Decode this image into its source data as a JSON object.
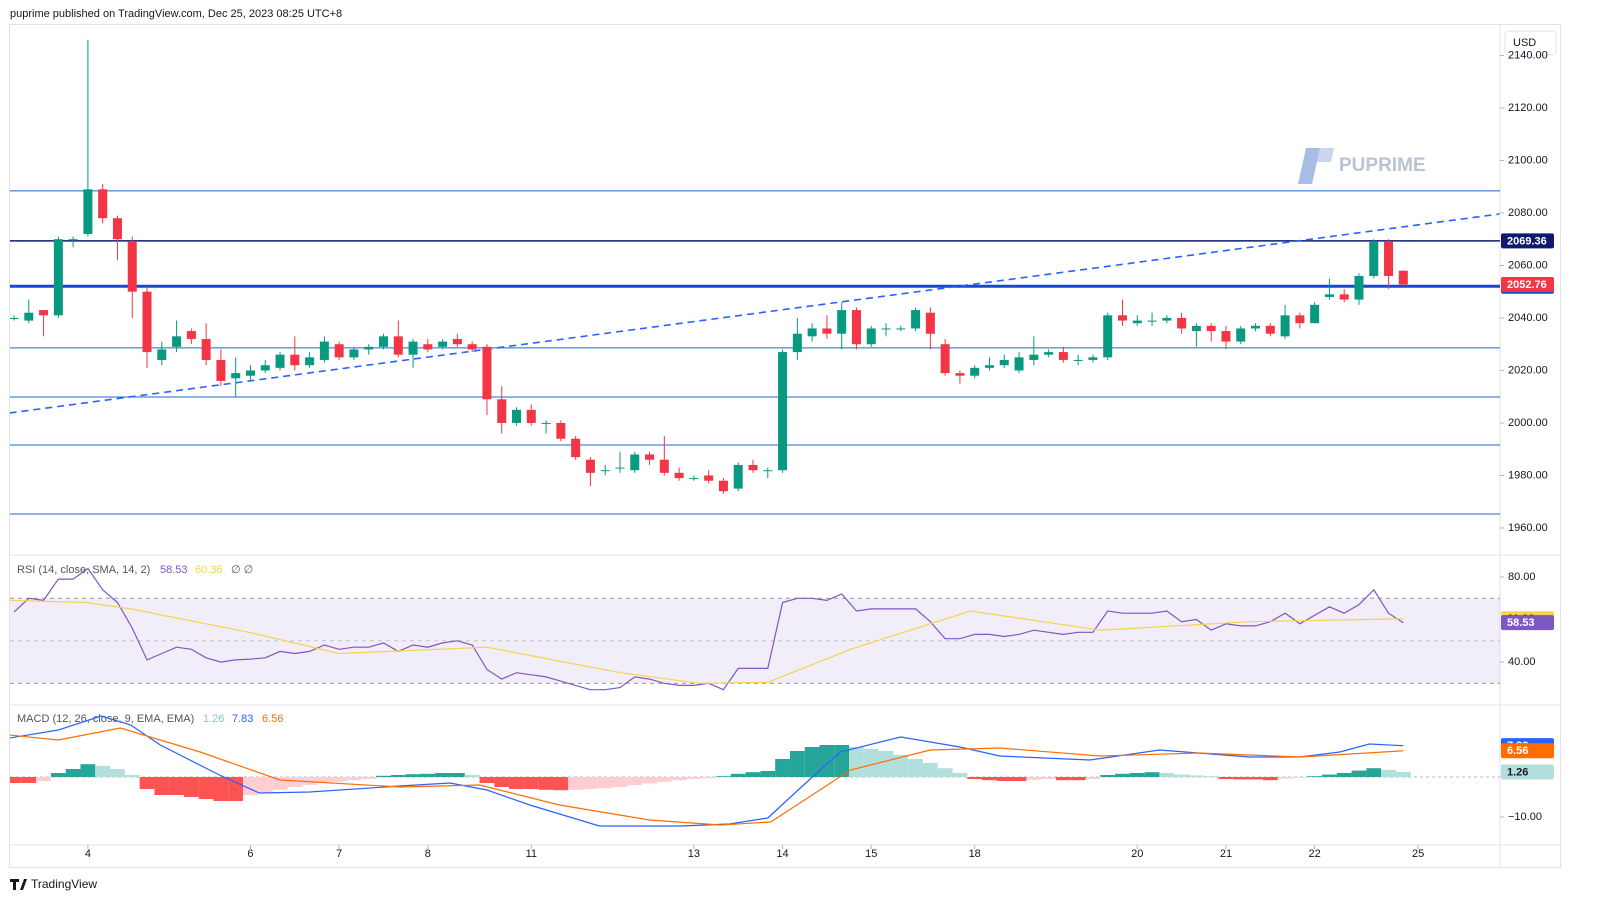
{
  "header": {
    "published": "puprime published on TradingView.com, Dec 25, 2023 08:25 UTC+8",
    "currency": "USD",
    "watermark": "PUPRIME"
  },
  "footer": {
    "brand": "TradingView"
  },
  "chart_data": [
    {
      "type": "candlestick",
      "up_color": "#089981",
      "down_color": "#f23645",
      "open": [
        2040,
        2039,
        2043,
        2041,
        2070,
        2072,
        2089,
        2078,
        2069,
        2050,
        2024,
        2029,
        2035,
        2032,
        2024,
        2017,
        2018,
        2020,
        2021,
        2026,
        2022,
        2024,
        2030,
        2025,
        2028,
        2029,
        2033,
        2026,
        2030,
        2029,
        2032,
        2030,
        2029,
        2009,
        2000,
        2005,
        2000,
        2000,
        1994,
        1986,
        1982,
        1983,
        1982,
        1988,
        1986,
        1981,
        1979,
        1980,
        1978,
        1975,
        1984,
        1982,
        1982,
        2027,
        2033,
        2036,
        2034,
        2043,
        2030,
        2036,
        2036,
        2036,
        2042,
        2030,
        2019,
        2018,
        2021,
        2022,
        2020,
        2024,
        2026,
        2027,
        2024,
        2024,
        2025,
        2041,
        2038,
        2039,
        2039,
        2040,
        2035,
        2037,
        2035,
        2031,
        2036,
        2037,
        2033,
        2041,
        2038,
        2048,
        2049,
        2047,
        2056,
        2069,
        2058
      ],
      "high": [
        2041,
        2047,
        2043,
        2071,
        2071,
        2146,
        2091,
        2079,
        2071,
        2052,
        2031,
        2039,
        2036,
        2038,
        2028,
        2025,
        2022,
        2024,
        2027,
        2033,
        2027,
        2033,
        2031,
        2029,
        2030,
        2034,
        2039,
        2032,
        2032,
        2032,
        2034,
        2031,
        2030,
        2014,
        2006,
        2007,
        2001,
        2001,
        1995,
        1987,
        1984,
        1989,
        1989,
        1989,
        1995,
        1983,
        1980,
        1982,
        1979,
        1985,
        1986,
        1983,
        2028,
        2040,
        2038,
        2041,
        2046,
        2044,
        2037,
        2038,
        2037,
        2044,
        2044,
        2032,
        2020,
        2022,
        2025,
        2026,
        2027,
        2033,
        2028,
        2029,
        2026,
        2026,
        2042,
        2047,
        2041,
        2042,
        2041,
        2042,
        2038,
        2038,
        2037,
        2037,
        2038,
        2038,
        2045,
        2042,
        2046,
        2055,
        2051,
        2057,
        2070,
        2070,
        2058
      ],
      "low": [
        2039,
        2038,
        2033,
        2040,
        2067,
        2071,
        2076,
        2062,
        2040,
        2021,
        2022,
        2027,
        2030,
        2022,
        2014,
        2010,
        2016,
        2019,
        2020,
        2020,
        2021,
        2023,
        2024,
        2024,
        2026,
        2028,
        2025,
        2021,
        2027,
        2028,
        2029,
        2027,
        2003,
        1996,
        1999,
        1999,
        1996,
        1993,
        1986,
        1976,
        1980,
        1981,
        1981,
        1984,
        1980,
        1978,
        1978,
        1977,
        1973,
        1974,
        1981,
        1979,
        1981,
        2024,
        2031,
        2032,
        2028,
        2028,
        2029,
        2033,
        2035,
        2035,
        2028,
        2018,
        2015,
        2017,
        2020,
        2021,
        2019,
        2022,
        2025,
        2023,
        2022,
        2023,
        2024,
        2037,
        2037,
        2037,
        2038,
        2034,
        2029,
        2031,
        2028,
        2030,
        2035,
        2033,
        2032,
        2036,
        2038,
        2047,
        2046,
        2045,
        2055,
        2051,
        2052
      ],
      "close": [
        2040,
        2042,
        2041,
        2070,
        2070,
        2089,
        2078,
        2070,
        2050,
        2027,
        2028,
        2033,
        2032,
        2024,
        2016,
        2019,
        2020,
        2022,
        2026,
        2022,
        2025,
        2031,
        2025,
        2028,
        2029,
        2033,
        2026,
        2031,
        2028,
        2031,
        2030,
        2028,
        2009,
        2000,
        2005,
        2000,
        2000,
        1994,
        1987,
        1981,
        1982,
        1983,
        1988,
        1986,
        1981,
        1979,
        1979,
        1978,
        1974,
        1984,
        1982,
        1982,
        2027,
        2034,
        2036,
        2034,
        2043,
        2030,
        2036,
        2036,
        2036,
        2043,
        2034,
        2019,
        2018,
        2021,
        2022,
        2024,
        2025,
        2026,
        2027,
        2024,
        2024,
        2025,
        2041,
        2039,
        2039,
        2039,
        2040,
        2036,
        2037,
        2035,
        2031,
        2036,
        2037,
        2034,
        2041,
        2038,
        2045,
        2049,
        2047,
        2056,
        2069,
        2056,
        2052.76
      ],
      "ylim": [
        1949.7,
        2151.6
      ],
      "yticks": [
        {
          "value": 1960,
          "label": "1960.00"
        },
        {
          "value": 1980,
          "label": "1980.00"
        },
        {
          "value": 2000,
          "label": "2000.00"
        },
        {
          "value": 2020,
          "label": "2020.00"
        },
        {
          "value": 2040,
          "label": "2040.00"
        },
        {
          "value": 2060,
          "label": "2060.00"
        },
        {
          "value": 2080,
          "label": "2080.00"
        },
        {
          "value": 2100,
          "label": "2100.00"
        },
        {
          "value": 2120,
          "label": "2120.00"
        },
        {
          "value": 2140,
          "label": "2140.00"
        }
      ],
      "levels": [
        {
          "value": 2088.4,
          "color": "#1e66d8",
          "width": 1
        },
        {
          "value": 2069.36,
          "color": "#0d1a6e",
          "width": 1.5,
          "show_label": true
        },
        {
          "value": 2052.09,
          "color": "#1848cc",
          "width": 3,
          "show_label": true
        },
        {
          "value": 2028.6,
          "color": "#1e66d8",
          "width": 1
        },
        {
          "value": 2009.9,
          "color": "#1e66d8",
          "width": 1
        },
        {
          "value": 1991.6,
          "color": "#1e66d8",
          "width": 1
        },
        {
          "value": 1965.3,
          "color": "#1e66d8",
          "width": 1
        }
      ],
      "trend": {
        "x": [
          -0.3,
          100.5
        ],
        "values": [
          2003.8,
          2079.6
        ],
        "color": "#2962ff"
      }
    },
    {
      "type": "line",
      "title": "RSI (14, close, SMA, 14, 2)",
      "na_text": "∅ ∅",
      "series": [
        {
          "color": "#7e57c2",
          "values": [
            63.5,
            70,
            69,
            79,
            79,
            84,
            74,
            68,
            56,
            41,
            44,
            47,
            46,
            42,
            40,
            41,
            41.4,
            42,
            45,
            44,
            45,
            48,
            46,
            47,
            47,
            49,
            45,
            48,
            47,
            49,
            50,
            48,
            36.5,
            32,
            35,
            34,
            33,
            31,
            29,
            27,
            27,
            28,
            33,
            32,
            30,
            29,
            29,
            30,
            27,
            37,
            37,
            37,
            68,
            70,
            70,
            69,
            72,
            64,
            65,
            65,
            65,
            65,
            59,
            51,
            51,
            53,
            53,
            52,
            53,
            55,
            54,
            53,
            54,
            54,
            64,
            63,
            63,
            63,
            64,
            59,
            60,
            55,
            58,
            57,
            57,
            59,
            63,
            58,
            62,
            66,
            63,
            67,
            74,
            63,
            58.53
          ]
        },
        {
          "color": "#f5d34f",
          "x": [
            -0.3,
            4.9,
            7.9,
            15.9,
            22,
            32,
            41,
            46.4,
            51,
            56.6,
            64.7,
            73.5,
            83.6,
            94
          ],
          "values": [
            69,
            68,
            65,
            54,
            44,
            47,
            35,
            30,
            30.5,
            46,
            64,
            55,
            59,
            60.36
          ]
        }
      ],
      "band": [
        30,
        70
      ],
      "midline": 50,
      "ylim": [
        19.8,
        90.35
      ],
      "yticks": [
        {
          "value": 40,
          "label": "40.00"
        },
        {
          "value": 80,
          "label": "80.00"
        }
      ]
    },
    {
      "type": "combo",
      "title": "MACD (12, 26, close, 9, EMA, EMA)",
      "histogram": {
        "values": [
          -1.5,
          -1.5,
          -1,
          1,
          2,
          3.2,
          2.8,
          2,
          0.5,
          -3,
          -4.5,
          -4.5,
          -5,
          -5.5,
          -6,
          -6,
          -4.5,
          -4,
          -3.2,
          -2.5,
          -2,
          -1.5,
          -1.2,
          -0.8,
          -0.5,
          0.3,
          0.5,
          0.7,
          0.8,
          1,
          1,
          0.5,
          -1.5,
          -2.5,
          -3,
          -3,
          -3.2,
          -3.3,
          -3.2,
          -3,
          -2.8,
          -2.5,
          -2,
          -1.6,
          -1.2,
          -0.8,
          -0.5,
          -0.3,
          0.2,
          0.8,
          1.2,
          1.5,
          4.5,
          6.5,
          7.5,
          8,
          8,
          7.5,
          7,
          6.5,
          5.5,
          4.5,
          3.5,
          2.2,
          1,
          -0.5,
          -0.8,
          -1,
          -1,
          -0.7,
          -0.5,
          -0.8,
          -0.8,
          -0.5,
          0.5,
          0.8,
          1,
          1.2,
          1,
          0.6,
          0.4,
          0.2,
          -0.5,
          -0.6,
          -0.6,
          -0.8,
          -0.4,
          -0.2,
          0.2,
          0.6,
          1,
          1.6,
          2.2,
          1.8,
          1.26
        ],
        "colors": {
          "up_grow": "#26a69a",
          "up_fall": "#b2dfdb",
          "down_grow": "#ff5252",
          "down_fall": "#ffcdd2"
        }
      },
      "series": [
        {
          "color": "#2962ff",
          "x": [
            -0.3,
            3,
            5.9,
            7.9,
            9.9,
            13.9,
            16.6,
            20,
            26.1,
            29.5,
            32,
            34.9,
            39.6,
            45.1,
            48.4,
            51,
            53.2,
            55.9,
            60,
            64,
            66.7,
            72.8,
            77.5,
            83.6,
            87,
            89.7,
            91.7,
            94
          ],
          "values": [
            9.75,
            11.75,
            15.25,
            13,
            8,
            0.5,
            -4,
            -3.75,
            -2.25,
            -1.5,
            -3.25,
            -7,
            -12.25,
            -12.25,
            -11.75,
            -10.25,
            -2.75,
            6.25,
            10,
            7.5,
            5.25,
            4.25,
            6.75,
            5,
            5,
            6.25,
            8.25,
            7.83
          ]
        },
        {
          "color": "#ff6d00",
          "x": [
            -0.3,
            3,
            7.2,
            12.6,
            18,
            26.1,
            31.5,
            36.9,
            43,
            47.8,
            51.2,
            56.6,
            62,
            66.7,
            73.5,
            80.2,
            87,
            94
          ],
          "values": [
            10.5,
            9.25,
            12.25,
            6.25,
            -0.75,
            -2.5,
            -2,
            -7,
            -10.75,
            -12,
            -11.25,
            1.75,
            6.75,
            7.25,
            5.25,
            6,
            5,
            6.56
          ]
        }
      ],
      "ylim": [
        -17,
        18
      ],
      "yticks": [
        {
          "value": -10,
          "label": "−10.00"
        }
      ],
      "xticks": [
        {
          "value": 5,
          "label": "4"
        },
        {
          "value": 16,
          "label": "6"
        },
        {
          "value": 22,
          "label": "7"
        },
        {
          "value": 28,
          "label": "8"
        },
        {
          "value": 35,
          "label": "11"
        },
        {
          "value": 46,
          "label": "13"
        },
        {
          "value": 52,
          "label": "14"
        },
        {
          "value": 58,
          "label": "15"
        },
        {
          "value": 65,
          "label": "18"
        },
        {
          "value": 76,
          "label": "20"
        },
        {
          "value": 82,
          "label": "21"
        },
        {
          "value": 88,
          "label": "22"
        },
        {
          "value": 95,
          "label": "25"
        }
      ]
    }
  ]
}
